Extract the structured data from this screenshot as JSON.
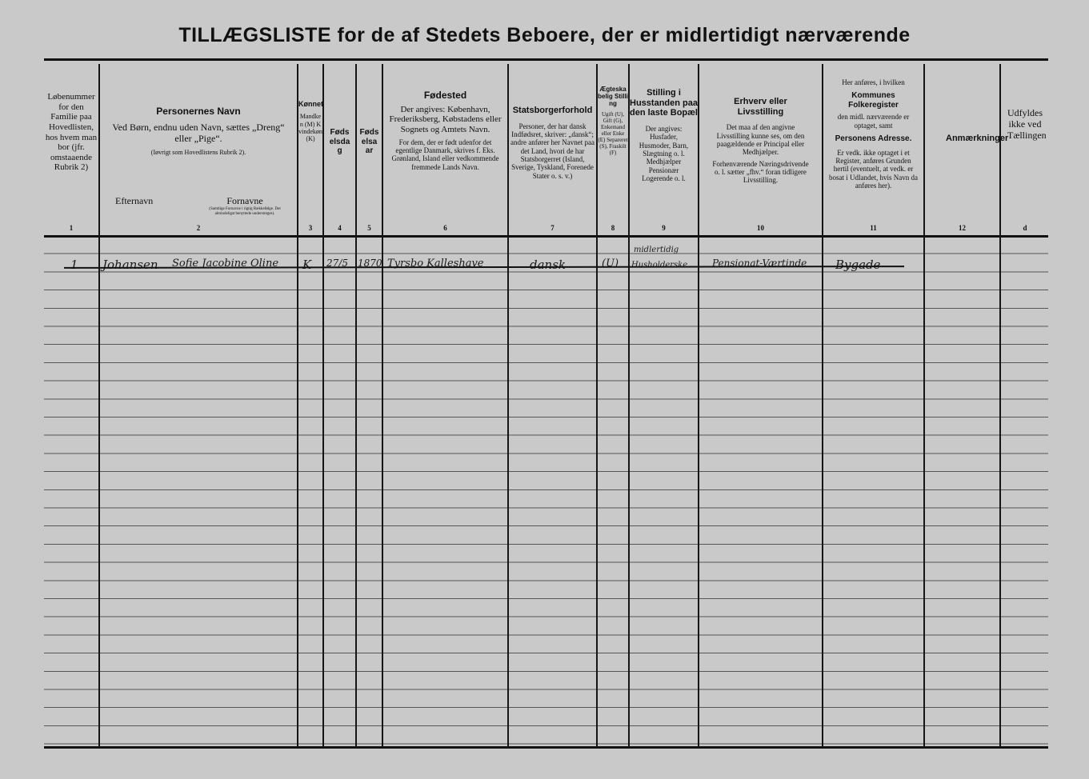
{
  "title": "TILLÆGSLISTE for de af Stedets Beboere, der er midlertidigt nærværende",
  "columns": [
    {
      "num": "1",
      "heading": "",
      "text": "Løbenummer for den Familie paa Hovedlisten, hos hvem man bor (jfr. omstaaende Rubrik 2)"
    },
    {
      "num": "2",
      "heading": "Personernes Navn",
      "text": "Ved Børn, endnu uden Navn, sættes „Dreng“ eller „Pige“.",
      "note": "(Iøvrigt som Hovedlistens Rubrik 2).",
      "sub1": "Efternavn",
      "sub2": "Fornavne",
      "sub2note": "(Samtlige Fornavne i rigtig Rækkefølge. Det almindeligst benyttede understreges)."
    },
    {
      "num": "3",
      "heading": "Kønnet",
      "text": "Mandken (M) Kvindekøn (K)"
    },
    {
      "num": "4",
      "heading": "Fødselsdag",
      "text": ""
    },
    {
      "num": "5",
      "heading": "Fødselsaar",
      "text": ""
    },
    {
      "num": "6",
      "heading": "Fødested",
      "text": "Der angives: København, Frederiksberg, Købstadens eller Sognets og Amtets Navn.",
      "note": "For dem, der er født udenfor det egentlige Danmark, skrives f. Eks. Grønland, Island eller vedkommende fremmede Lands Navn."
    },
    {
      "num": "7",
      "heading": "Statsborgerforhold",
      "text": "Personer, der har dansk Indfødsret, skriver: „dansk“; andre anfører her Navnet paa det Land, hvori de har Statsborgerret (Island, Sverige, Tyskland, Forenede Stater o. s. v.)"
    },
    {
      "num": "8",
      "heading": "Ægteskabelig Stilling",
      "text": "Ugift (U), Gift (G), Enkemand eller Enke (E) Separeret (S), Fraskilt (F)"
    },
    {
      "num": "9",
      "heading": "Stilling i Husstanden paa den laste Bopæl",
      "text": "Der angives: Husfader, Husmoder, Barn, Slægtning o. l. Medhjælper Pensionær Logerende o. l."
    },
    {
      "num": "10",
      "heading": "Erhverv eller Livsstilling",
      "text": "Det maa af den angivne Livsstilling kunne ses, om den paagældende er Principal eller Medhjælper.",
      "note": "Forhenværende Næringsdrivende o. l. sætter „fhv.“ foran tidligere Livsstilling."
    },
    {
      "num": "11",
      "heading": "Kommunes Folkeregister",
      "pre": "Her anføres, i hvilken",
      "text": "den midl. nærværende er optaget, samt",
      "heading2": "Personens Adresse.",
      "note": "Er vedk. ikke optaget i et Register, anføres Grunden hertil (eventuelt, at vedk. er bosat i Udlandet, hvis Navn da anføres her)."
    },
    {
      "num": "12",
      "heading": "Anmærkninger",
      "text": ""
    },
    {
      "num": "d",
      "heading": "",
      "text": "Udfyldes ikke ved Tællingen"
    }
  ],
  "entry": {
    "lobenr": "1",
    "efternavn": "Johansen",
    "fornavne": "Sofie Jacobine Oline",
    "kon": "K",
    "dag": "27/5",
    "aar": "1870",
    "fodested": "Tyrsbo Kalleshave",
    "statsborger": "dansk",
    "aegteskab": "(U)",
    "stilling_top": "midlertidig",
    "stilling": "Husholderske",
    "erhverv": "Pensionat-Værtinde",
    "adresse": "Bygade"
  }
}
